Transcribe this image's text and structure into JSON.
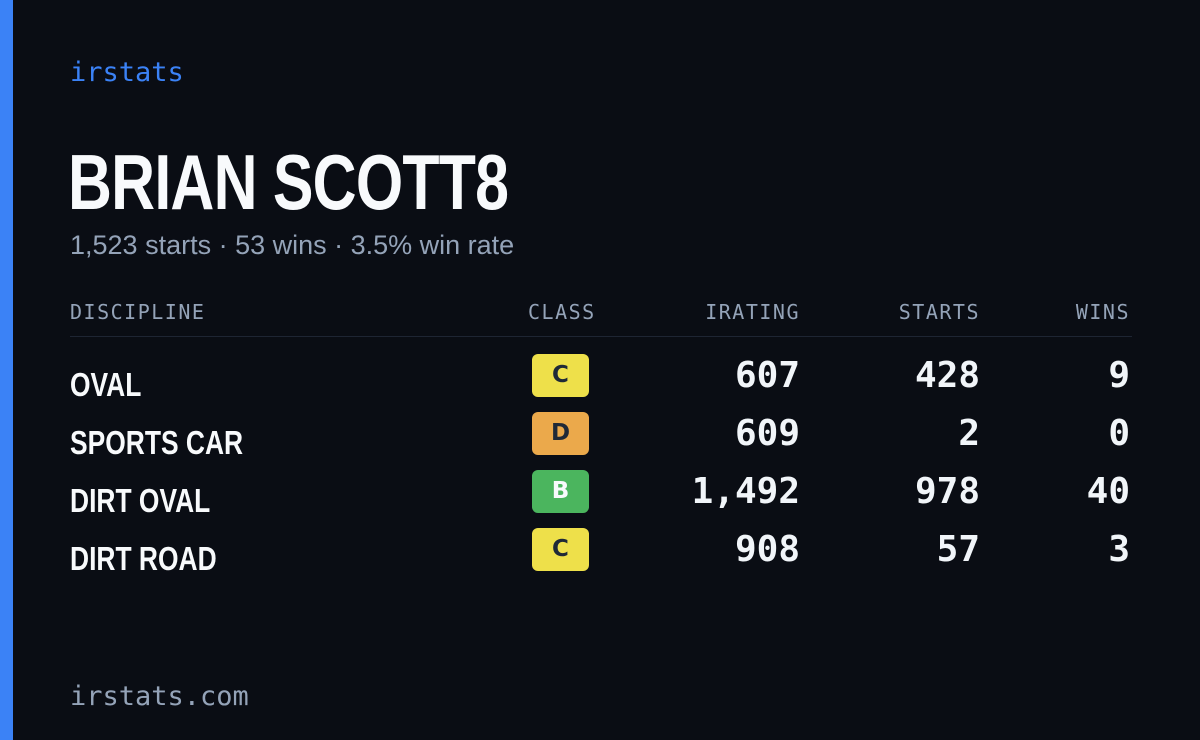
{
  "brand": "irstats",
  "driver": {
    "name": "BRIAN SCOTT8",
    "summary": "1,523 starts · 53 wins · 3.5% win rate"
  },
  "table": {
    "headers": {
      "discipline": "DISCIPLINE",
      "class": "CLASS",
      "irating": "IRATING",
      "starts": "STARTS",
      "wins": "WINS"
    },
    "rows": [
      {
        "discipline": "OVAL",
        "class": "C",
        "class_color": "#eee04a",
        "irating": "607",
        "starts": "428",
        "wins": "9"
      },
      {
        "discipline": "SPORTS CAR",
        "class": "D",
        "class_color": "#eba94b",
        "irating": "609",
        "starts": "2",
        "wins": "0"
      },
      {
        "discipline": "DIRT OVAL",
        "class": "B",
        "class_color": "#4bb55e",
        "irating": "1,492",
        "starts": "978",
        "wins": "40"
      },
      {
        "discipline": "DIRT ROAD",
        "class": "C",
        "class_color": "#eee04a",
        "irating": "908",
        "starts": "57",
        "wins": "3"
      }
    ]
  },
  "footer": "irstats.com",
  "colors": {
    "background": "#0a0d14",
    "accent": "#3b82f6",
    "muted": "#94a3b8",
    "text": "#f8fafc"
  }
}
